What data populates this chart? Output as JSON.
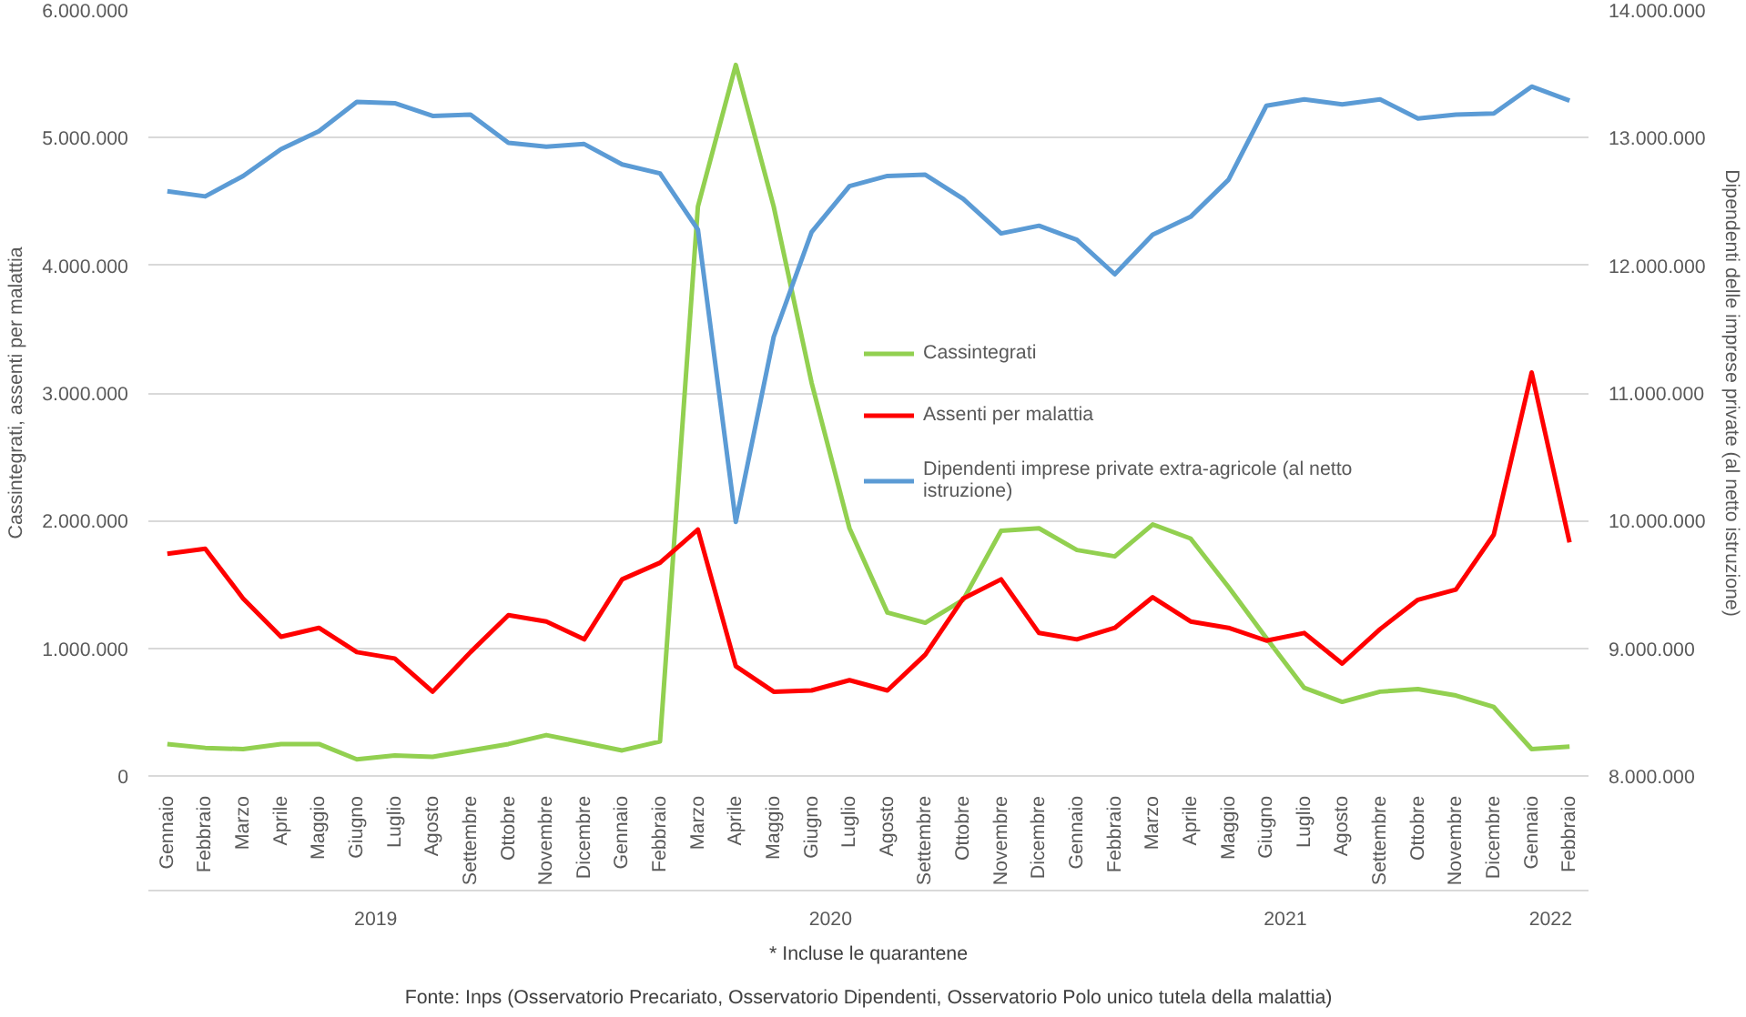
{
  "chart_data": {
    "type": "line",
    "ylabel": "Cassintegrati, assenti per malattia",
    "y2label": "Dipendenti delle imprese private (al netto istruzione)",
    "categories": [
      "Gennaio",
      "Febbraio",
      "Marzo",
      "Aprile",
      "Maggio",
      "Giugno",
      "Luglio",
      "Agosto",
      "Settembre",
      "Ottobre",
      "Novembre",
      "Dicembre",
      "Gennaio",
      "Febbraio",
      "Marzo",
      "Aprile",
      "Maggio",
      "Giugno",
      "Luglio",
      "Agosto",
      "Settembre",
      "Ottobre",
      "Novembre",
      "Dicembre",
      "Gennaio",
      "Febbraio",
      "Marzo",
      "Aprile",
      "Maggio",
      "Giugno",
      "Luglio",
      "Agosto",
      "Settembre",
      "Ottobre",
      "Novembre",
      "Dicembre",
      "Gennaio",
      "Febbraio"
    ],
    "series": [
      {
        "name": "Cassintegrati",
        "color": "#92d050",
        "values": [
          250000,
          220000,
          210000,
          250000,
          250000,
          130000,
          160000,
          150000,
          200000,
          250000,
          320000,
          260000,
          200000,
          270000,
          4460000,
          5570000,
          4460000,
          3080000,
          1940000,
          1280000,
          1200000,
          1380000,
          1920000,
          1940000,
          1770000,
          1720000,
          1970000,
          1860000,
          1480000,
          1080000,
          690000,
          580000,
          660000,
          680000,
          630000,
          540000,
          210000,
          230000
        ]
      },
      {
        "name": "Assenti per malattia",
        "color": "#ff0000",
        "values": [
          1740000,
          1780000,
          1390000,
          1090000,
          1160000,
          970000,
          920000,
          660000,
          970000,
          1260000,
          1210000,
          1070000,
          1540000,
          1670000,
          1930000,
          860000,
          660000,
          670000,
          750000,
          670000,
          950000,
          1390000,
          1540000,
          1120000,
          1070000,
          1160000,
          1400000,
          1210000,
          1160000,
          1060000,
          1120000,
          880000,
          1150000,
          1380000,
          1460000,
          1890000,
          3160000,
          1830000
        ]
      },
      {
        "name": "Dipendenti imprese private extra-agricole (al netto istruzione)",
        "color": "#5b9bd5",
        "axis": "y2",
        "values": [
          12580000,
          12540000,
          12700000,
          12910000,
          13050000,
          13280000,
          13270000,
          13170000,
          13180000,
          12960000,
          12930000,
          12950000,
          12790000,
          12720000,
          12280000,
          9990000,
          11440000,
          12260000,
          12620000,
          12700000,
          12710000,
          12520000,
          12250000,
          12310000,
          12200000,
          11930000,
          12240000,
          12380000,
          12670000,
          13250000,
          13300000,
          13260000,
          13300000,
          13150000,
          13180000,
          13190000,
          13400000,
          13290000
        ]
      }
    ],
    "ylim": [
      0,
      6000000
    ],
    "yticks": [
      0,
      {
        "value": 1000000,
        "label": "1.000.000"
      },
      {
        "value": 2000000,
        "label": "2.000.000"
      },
      {
        "value": 3000000,
        "label": "3.000.000"
      },
      {
        "value": 4000000,
        "label": "4.000.000"
      },
      {
        "value": 5000000,
        "label": "5.000.000"
      },
      {
        "value": 6000000,
        "label": "6.000.000"
      }
    ],
    "y2lim": [
      8000000,
      14000000
    ],
    "y2ticks": [
      {
        "value": 8000000,
        "label": "8.000.000"
      },
      {
        "value": 9000000,
        "label": "9.000.000"
      },
      {
        "value": 10000000,
        "label": "10.000.000"
      },
      {
        "value": 11000000,
        "label": "11.000.000"
      },
      {
        "value": 12000000,
        "label": "12.000.000"
      },
      {
        "value": 13000000,
        "label": "13.000.000"
      },
      {
        "value": 14000000,
        "label": "14.000.000"
      }
    ],
    "grid": "y",
    "legend": "center",
    "line_style": "solid",
    "annotations": [
      "2019",
      "2020",
      "2021",
      "2022",
      "* Incluse le quarantene",
      "Fonte: Inps (Osservatorio Precariato, Osservatorio Dipendenti, Osservatorio Polo unico tutela della malattia)"
    ]
  }
}
